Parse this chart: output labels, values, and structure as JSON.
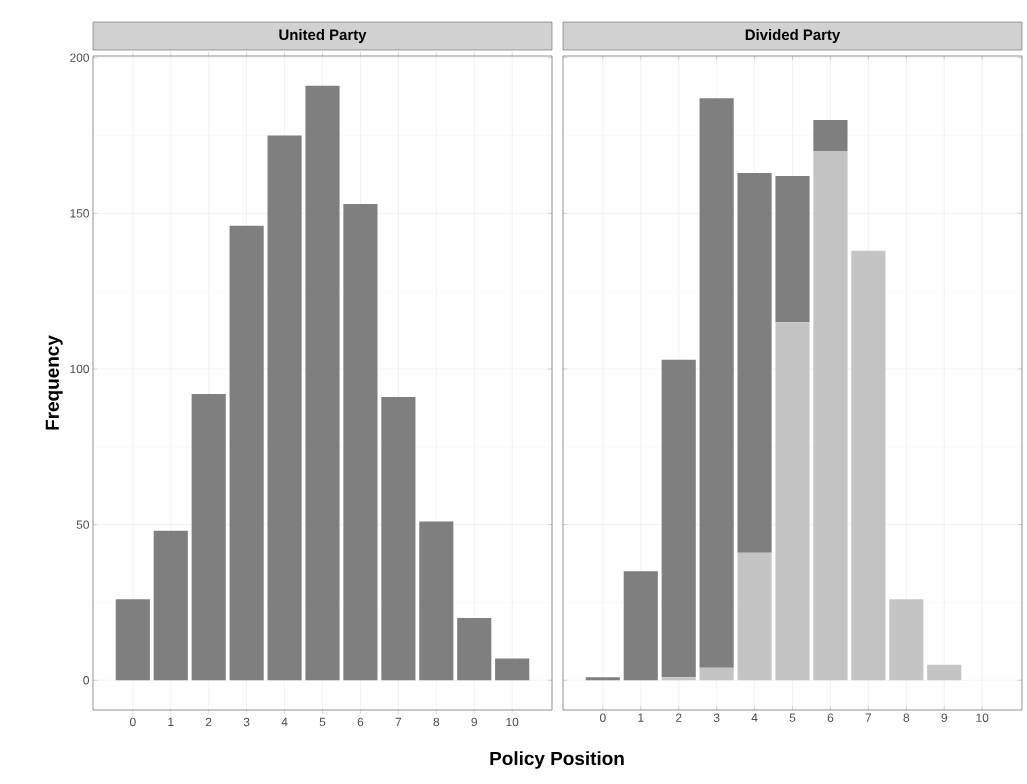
{
  "chart_data": [
    {
      "type": "bar",
      "title": "United Party",
      "ylabel": "Frequency",
      "xlabel": "Policy Position",
      "categories": [
        "0",
        "1",
        "2",
        "3",
        "4",
        "5",
        "6",
        "7",
        "8",
        "9",
        "10"
      ],
      "values": [
        26,
        48,
        92,
        146,
        175,
        191,
        153,
        91,
        51,
        20,
        7
      ],
      "color": "#7f7f7f",
      "ylim": [
        -9.55,
        200.55
      ],
      "yticks": [
        0,
        50,
        100,
        150,
        200
      ],
      "grid": true
    },
    {
      "type": "bar",
      "title": "Divided Party",
      "categories": [
        "0",
        "1",
        "2",
        "3",
        "4",
        "5",
        "6",
        "7",
        "8",
        "9",
        "10"
      ],
      "stacked": true,
      "series": [
        {
          "color": "#c4c4c4",
          "values": [
            0,
            0,
            1,
            4,
            41,
            115,
            170,
            138,
            26,
            5,
            0
          ]
        },
        {
          "color": "#7f7f7f",
          "values": [
            1,
            35,
            102,
            183,
            122,
            47,
            10,
            0,
            0,
            0,
            0
          ]
        }
      ],
      "ylim": [
        -9.55,
        200.55
      ],
      "yticks": [
        0,
        50,
        100,
        150,
        200
      ],
      "grid": true,
      "tick_labels": "x"
    }
  ]
}
